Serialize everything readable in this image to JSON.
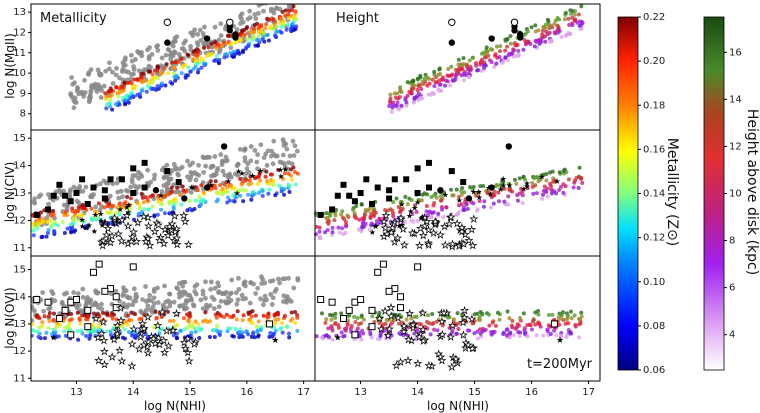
{
  "chart_data": {
    "type": "scatter",
    "description_units": "log column densities",
    "xlabel": "log N(NHI)",
    "x_ticks": [
      13,
      14,
      15,
      16,
      17
    ],
    "xlim": [
      12.2,
      17.2
    ],
    "columns": [
      {
        "title": "Metallicity",
        "color_by": "metallicity"
      },
      {
        "title": "Height",
        "color_by": "height"
      }
    ],
    "rows": [
      {
        "ylabel": "log N(MgII)",
        "ylim": [
          7.2,
          13.4
        ],
        "y_ticks": [
          8,
          9,
          10,
          11,
          12,
          13
        ],
        "filled_circles": [
          [
            14.6,
            11.5
          ],
          [
            15.3,
            11.7
          ],
          [
            15.7,
            12.1
          ],
          [
            15.8,
            11.9
          ],
          [
            15.8,
            11.75
          ],
          [
            15.7,
            12.3
          ]
        ],
        "open_circles": [
          [
            14.6,
            12.5
          ],
          [
            15.7,
            12.5
          ]
        ]
      },
      {
        "ylabel": "log N(CIV)",
        "ylim": [
          10.7,
          15.3
        ],
        "y_ticks": [
          11,
          12,
          13,
          14,
          15
        ],
        "filled_circles": [
          [
            15.6,
            14.7
          ],
          [
            15.3,
            13.2
          ],
          [
            14.9,
            12.8
          ],
          [
            14.4,
            13.1
          ]
        ],
        "filled_squares": [
          [
            12.3,
            12.2
          ],
          [
            12.5,
            12.4
          ],
          [
            12.6,
            12.9
          ],
          [
            12.8,
            12.9
          ],
          [
            12.7,
            13.3
          ],
          [
            13.0,
            13.0
          ],
          [
            13.3,
            13.2
          ],
          [
            13.5,
            13.1
          ],
          [
            13.6,
            13.5
          ],
          [
            13.8,
            13.5
          ],
          [
            14.0,
            13.0
          ],
          [
            14.2,
            13.2
          ],
          [
            13.2,
            12.6
          ],
          [
            13.5,
            12.8
          ],
          [
            14.0,
            13.9
          ],
          [
            14.2,
            14.1
          ],
          [
            14.6,
            13.8
          ],
          [
            14.8,
            13.4
          ],
          [
            13.1,
            13.5
          ],
          [
            12.9,
            12.7
          ]
        ],
        "open_markers_region": {
          "x_range": [
            13.4,
            15.0
          ],
          "y_range": [
            11.0,
            12.2
          ]
        },
        "stars_region": {
          "x_range": [
            13.0,
            16.7
          ],
          "y_range": [
            11.4,
            14.0
          ]
        }
      },
      {
        "ylabel": "log N(OVI)",
        "ylim": [
          10.9,
          15.5
        ],
        "y_ticks": [
          11,
          12,
          13,
          14,
          15
        ],
        "open_squares": [
          [
            12.3,
            13.9
          ],
          [
            12.5,
            13.8
          ],
          [
            12.7,
            13.2
          ],
          [
            12.8,
            13.5
          ],
          [
            12.9,
            13.8
          ],
          [
            13.0,
            13.9
          ],
          [
            13.2,
            13.5
          ],
          [
            13.3,
            14.9
          ],
          [
            13.4,
            15.2
          ],
          [
            13.6,
            14.3
          ],
          [
            13.7,
            14.0
          ],
          [
            13.5,
            14.2
          ],
          [
            14.0,
            15.1
          ],
          [
            16.4,
            13.0
          ],
          [
            12.9,
            12.6
          ],
          [
            13.2,
            12.9
          ],
          [
            13.7,
            13.6
          ]
        ],
        "open_markers_region": {
          "x_range": [
            13.3,
            15.1
          ],
          "y_range": [
            11.4,
            13.6
          ]
        },
        "filled_stars": [
          [
            12.6,
            12.5
          ],
          [
            16.5,
            12.4
          ]
        ]
      }
    ],
    "annotation": "t=200Myr",
    "colorbars": [
      {
        "label": "Metallicity (Z⊙)",
        "min": 0.06,
        "max": 0.22,
        "ticks": [
          "0.06",
          "0.08",
          "0.10",
          "0.12",
          "0.14",
          "0.16",
          "0.18",
          "0.20",
          "0.22"
        ],
        "colormap": "jet"
      },
      {
        "label": "Height above disk (kpc)",
        "min": 2.5,
        "max": 17.5,
        "ticks": [
          "4",
          "6",
          "8",
          "10",
          "12",
          "14",
          "16"
        ],
        "colormap": "white-purple-red-green"
      }
    ],
    "simulation_color": "#888888"
  }
}
